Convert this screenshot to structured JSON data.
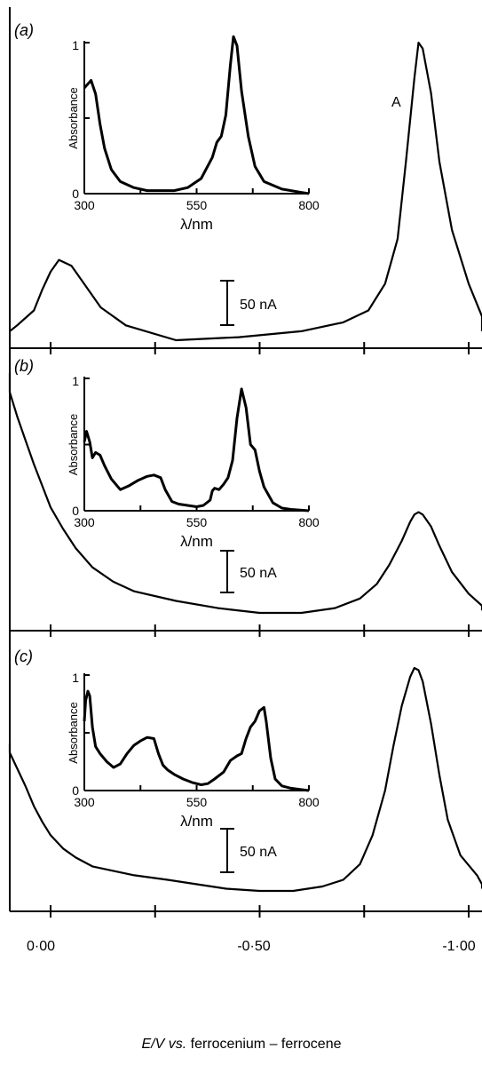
{
  "figure": {
    "x_axis": {
      "label_prefix": "E/V",
      "label_vs": "vs.",
      "label_rest": "ferrocenium – ferrocene",
      "ticks": [
        "0·00",
        "-0·50",
        "-1·00"
      ]
    }
  },
  "chart_data": [
    {
      "type": "line",
      "panel": "(a)",
      "title": "",
      "x_axis": "E/V vs. ferrocenium – ferrocene",
      "x_ticks": [
        "0·00",
        "-0·50",
        "-1·00"
      ],
      "xlim": [
        0.12,
        -1.1
      ],
      "scale_bar": "50 nA",
      "peak_label": "A",
      "series": [
        {
          "x": [
            0.12,
            0.08,
            0.04,
            0.02,
            0.0,
            -0.02,
            -0.05,
            -0.08,
            -0.12,
            -0.18,
            -0.3,
            -0.45,
            -0.6,
            -0.7,
            -0.76,
            -0.8,
            -0.83,
            -0.85,
            -0.87,
            -0.88,
            -0.89,
            -0.91,
            -0.93,
            -0.96,
            -1.0,
            -1.05,
            -1.1
          ],
          "y": [
            0.03,
            0.05,
            0.1,
            0.17,
            0.23,
            0.27,
            0.25,
            0.19,
            0.11,
            0.05,
            0.0,
            0.01,
            0.03,
            0.06,
            0.1,
            0.19,
            0.34,
            0.6,
            0.88,
            1.0,
            0.98,
            0.83,
            0.6,
            0.37,
            0.19,
            0.08,
            0.03
          ]
        }
      ],
      "inset": {
        "type": "line",
        "xlabel": "λ/nm",
        "ylabel": "Absorbance",
        "x_ticks": [
          "300",
          "550",
          "800"
        ],
        "y_ticks": [
          "0",
          "1"
        ],
        "xlim": [
          300,
          800
        ],
        "ylim": [
          0,
          1
        ],
        "x": [
          300,
          315,
          325,
          335,
          345,
          360,
          380,
          410,
          440,
          470,
          500,
          530,
          560,
          585,
          595,
          605,
          615,
          625,
          632,
          640,
          650,
          665,
          680,
          700,
          740,
          780,
          800
        ],
        "y": [
          0.7,
          0.75,
          0.66,
          0.46,
          0.3,
          0.16,
          0.08,
          0.04,
          0.02,
          0.02,
          0.02,
          0.04,
          0.1,
          0.24,
          0.34,
          0.38,
          0.52,
          0.85,
          1.04,
          0.98,
          0.68,
          0.38,
          0.18,
          0.08,
          0.03,
          0.01,
          0.0
        ]
      }
    },
    {
      "type": "line",
      "panel": "(b)",
      "title": "",
      "x_axis": "E/V vs. ferrocenium – ferrocene",
      "x_ticks": [
        "0·00",
        "-0·50",
        "-1·00"
      ],
      "xlim": [
        0.12,
        -1.1
      ],
      "scale_bar": "50 nA",
      "series": [
        {
          "x": [
            0.12,
            0.1,
            0.08,
            0.06,
            0.04,
            0.02,
            0.0,
            -0.03,
            -0.06,
            -0.1,
            -0.15,
            -0.2,
            -0.3,
            -0.4,
            -0.5,
            -0.6,
            -0.68,
            -0.74,
            -0.78,
            -0.81,
            -0.84,
            -0.86,
            -0.87,
            -0.88,
            -0.89,
            -0.91,
            -0.93,
            -0.96,
            -1.0,
            -1.05,
            -1.1
          ],
          "y": [
            1.0,
            0.92,
            0.82,
            0.72,
            0.62,
            0.53,
            0.44,
            0.35,
            0.27,
            0.19,
            0.13,
            0.09,
            0.05,
            0.02,
            0.0,
            0.0,
            0.02,
            0.06,
            0.12,
            0.2,
            0.3,
            0.38,
            0.41,
            0.42,
            0.41,
            0.36,
            0.28,
            0.17,
            0.08,
            0.03,
            0.01
          ]
        }
      ],
      "inset": {
        "type": "line",
        "xlabel": "λ/nm",
        "ylabel": "Absorbance",
        "x_ticks": [
          "300",
          "550",
          "800"
        ],
        "y_ticks": [
          "0",
          "1"
        ],
        "xlim": [
          300,
          800
        ],
        "ylim": [
          0,
          1
        ],
        "x": [
          300,
          305,
          312,
          318,
          325,
          335,
          345,
          360,
          380,
          400,
          420,
          440,
          455,
          470,
          480,
          495,
          510,
          530,
          550,
          565,
          580,
          585,
          590,
          600,
          610,
          620,
          630,
          640,
          650,
          660,
          670,
          680,
          690,
          700,
          720,
          740,
          760,
          800
        ],
        "y": [
          0.52,
          0.6,
          0.52,
          0.4,
          0.44,
          0.42,
          0.34,
          0.24,
          0.16,
          0.19,
          0.23,
          0.26,
          0.27,
          0.25,
          0.16,
          0.07,
          0.05,
          0.04,
          0.03,
          0.04,
          0.08,
          0.15,
          0.17,
          0.16,
          0.2,
          0.25,
          0.38,
          0.7,
          0.92,
          0.78,
          0.5,
          0.46,
          0.3,
          0.18,
          0.06,
          0.02,
          0.01,
          0.0
        ]
      }
    },
    {
      "type": "line",
      "panel": "(c)",
      "title": "",
      "x_axis": "E/V vs. ferrocenium – ferrocene",
      "x_ticks": [
        "0·00",
        "-0·50",
        "-1·00"
      ],
      "xlim": [
        0.12,
        -1.1
      ],
      "scale_bar": "50 nA",
      "series": [
        {
          "x": [
            0.12,
            0.1,
            0.08,
            0.06,
            0.04,
            0.02,
            0.0,
            -0.03,
            -0.06,
            -0.1,
            -0.15,
            -0.2,
            -0.28,
            -0.35,
            -0.42,
            -0.5,
            -0.58,
            -0.65,
            -0.7,
            -0.74,
            -0.77,
            -0.8,
            -0.82,
            -0.84,
            -0.86,
            -0.87,
            -0.88,
            -0.89,
            -0.91,
            -0.93,
            -0.95,
            -0.98,
            -1.02,
            -1.06,
            -1.1
          ],
          "y": [
            0.66,
            0.62,
            0.55,
            0.47,
            0.38,
            0.31,
            0.25,
            0.19,
            0.15,
            0.11,
            0.09,
            0.07,
            0.05,
            0.03,
            0.01,
            0.0,
            0.0,
            0.02,
            0.05,
            0.12,
            0.25,
            0.45,
            0.65,
            0.83,
            0.96,
            1.0,
            0.99,
            0.94,
            0.75,
            0.52,
            0.32,
            0.16,
            0.07,
            0.03,
            0.01
          ]
        }
      ],
      "inset": {
        "type": "line",
        "xlabel": "λ/nm",
        "ylabel": "Absorbance",
        "x_ticks": [
          "300",
          "550",
          "800"
        ],
        "y_ticks": [
          "0",
          "1"
        ],
        "xlim": [
          300,
          800
        ],
        "ylim": [
          0,
          1
        ],
        "x": [
          300,
          303,
          308,
          312,
          318,
          325,
          335,
          350,
          365,
          380,
          395,
          410,
          425,
          440,
          455,
          465,
          475,
          485,
          500,
          520,
          540,
          560,
          575,
          590,
          610,
          625,
          640,
          650,
          660,
          670,
          680,
          690,
          700,
          705,
          715,
          725,
          740,
          760,
          780,
          800
        ],
        "y": [
          0.6,
          0.78,
          0.86,
          0.82,
          0.55,
          0.38,
          0.32,
          0.25,
          0.2,
          0.23,
          0.32,
          0.39,
          0.43,
          0.46,
          0.45,
          0.32,
          0.22,
          0.18,
          0.14,
          0.1,
          0.07,
          0.05,
          0.06,
          0.1,
          0.16,
          0.26,
          0.3,
          0.32,
          0.45,
          0.55,
          0.6,
          0.69,
          0.72,
          0.6,
          0.28,
          0.1,
          0.04,
          0.02,
          0.01,
          0.0
        ]
      }
    }
  ]
}
